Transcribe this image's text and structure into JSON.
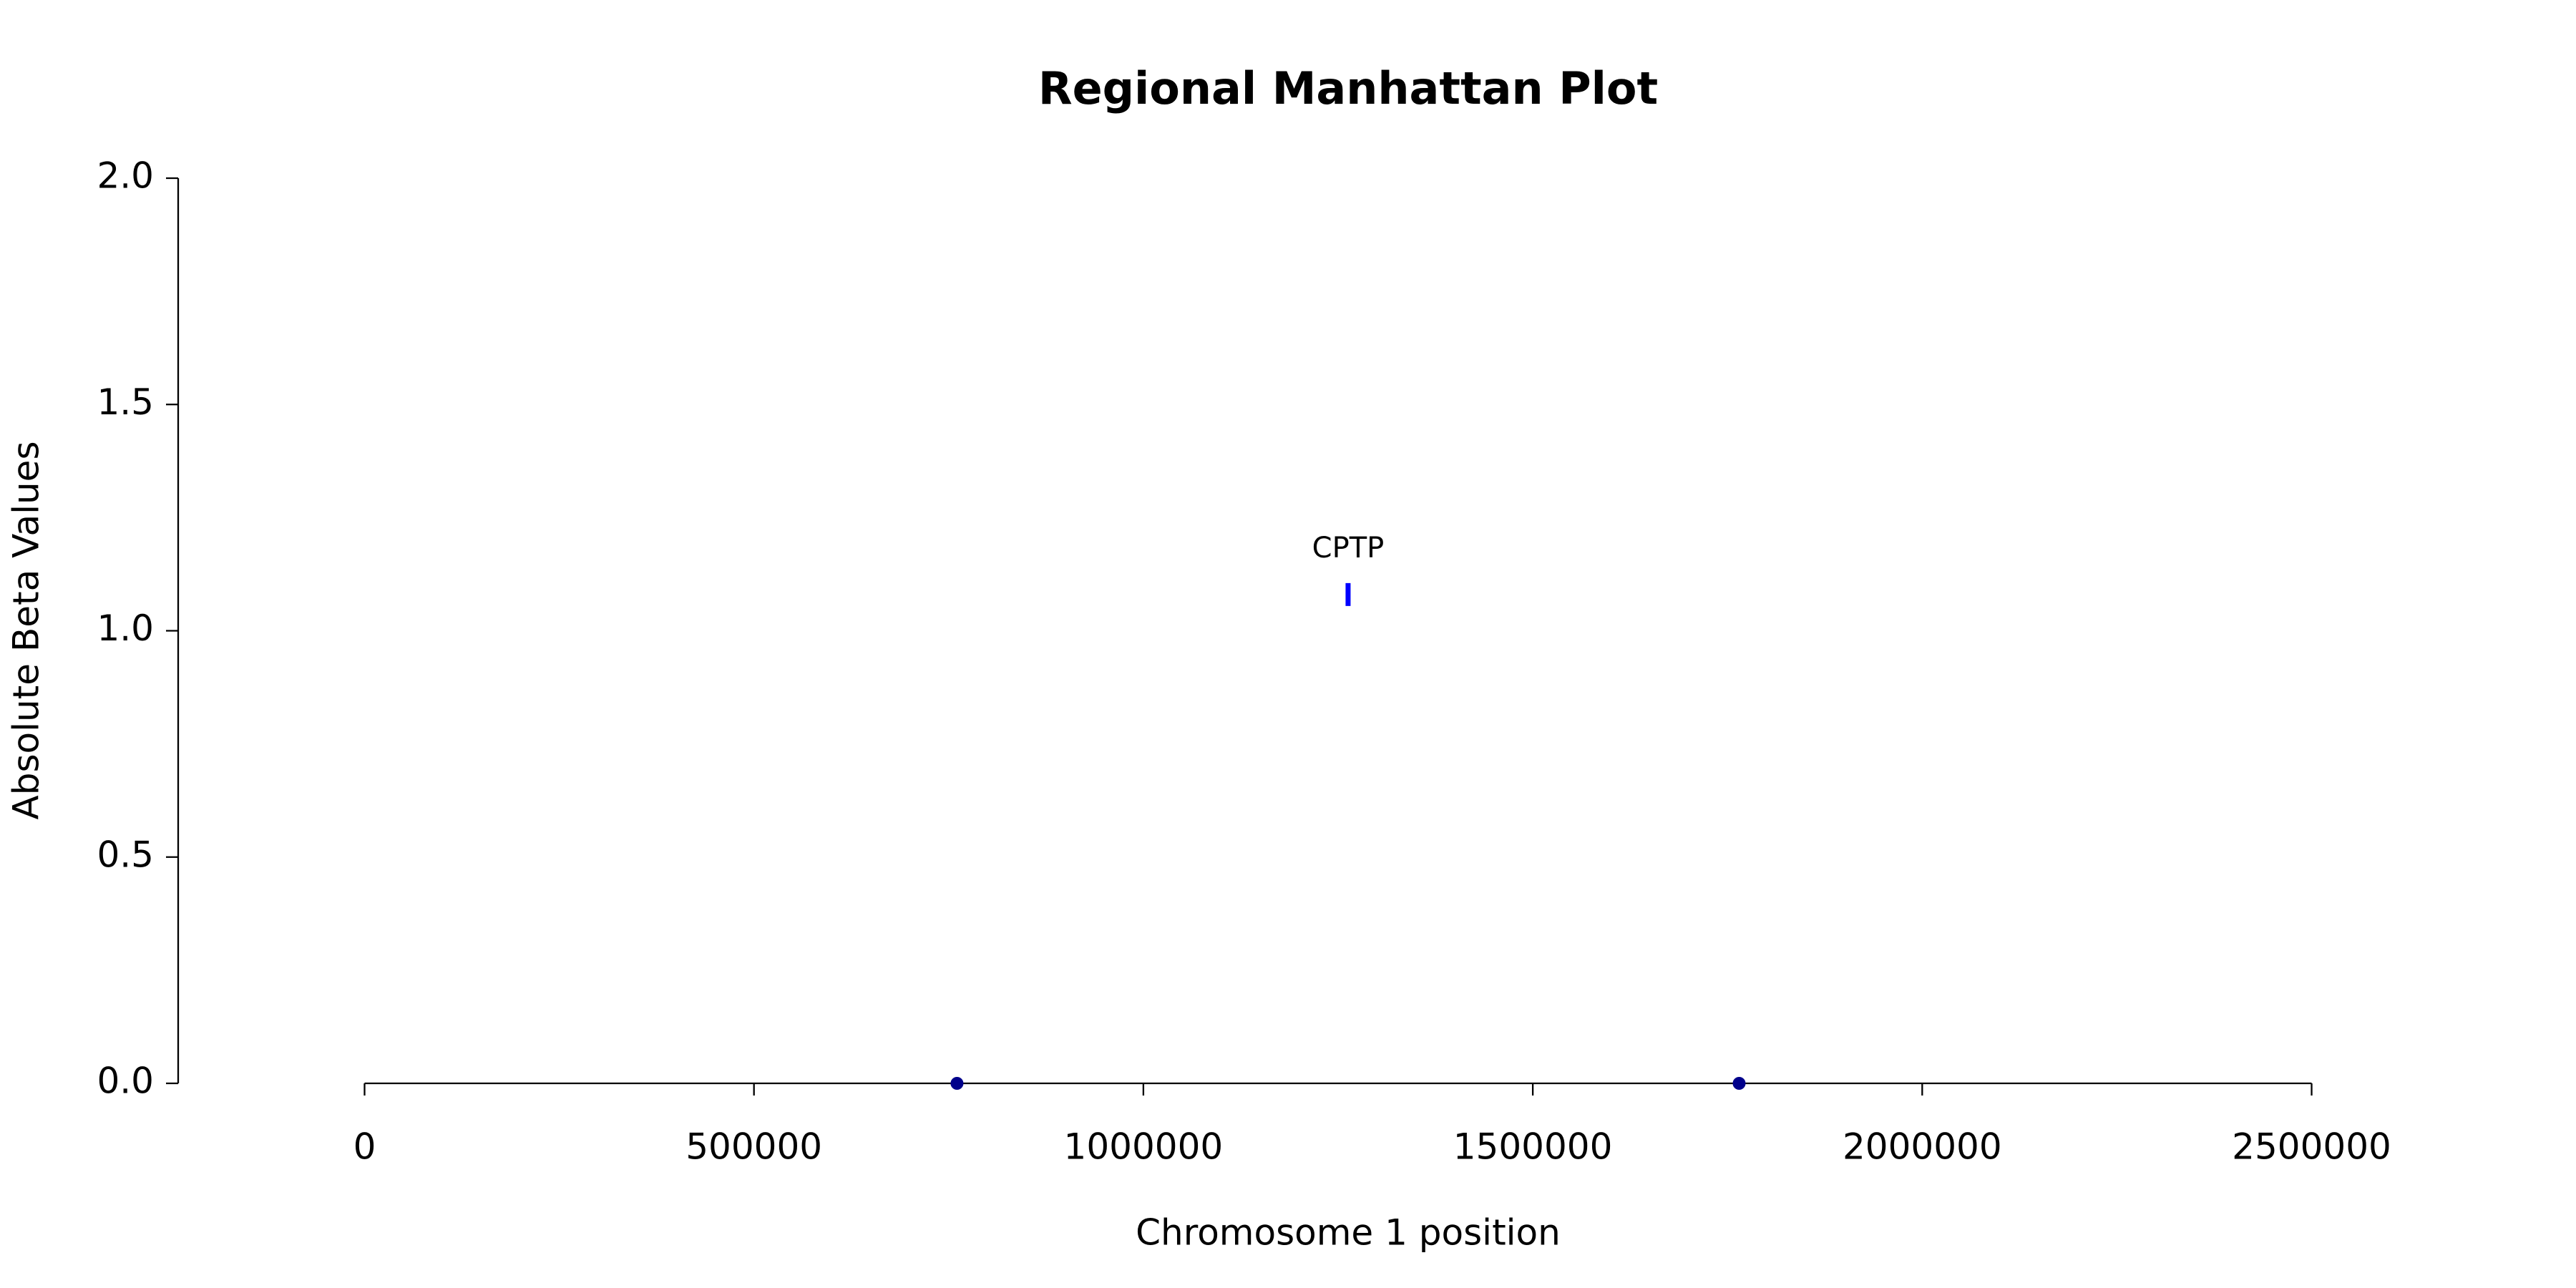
{
  "chart_data": {
    "type": "scatter",
    "title": "Regional Manhattan Plot",
    "xlabel": "Chromosome 1 position",
    "ylabel": "Absolute Beta Values",
    "xlim": [
      -239316,
      2739316
    ],
    "ylim": [
      0,
      2
    ],
    "xticks": [
      0,
      500000,
      1000000,
      1500000,
      2000000,
      2500000
    ],
    "yticks": [
      {
        "value": 0,
        "label": "0.0"
      },
      {
        "value": 0.5,
        "label": "0.5"
      },
      {
        "value": 1,
        "label": "1.0"
      },
      {
        "value": 1.5,
        "label": "1.5"
      },
      {
        "value": 2,
        "label": "2.0"
      }
    ],
    "series": [
      {
        "color": "#00008b",
        "marker": "o",
        "x": [
          760684,
          1764957
        ],
        "values": [
          0,
          0
        ]
      },
      {
        "color": "#0000ff",
        "marker": "|",
        "x": [
          1262820
        ],
        "values": [
          1.08
        ],
        "labels": [
          "CPTP"
        ]
      }
    ]
  }
}
